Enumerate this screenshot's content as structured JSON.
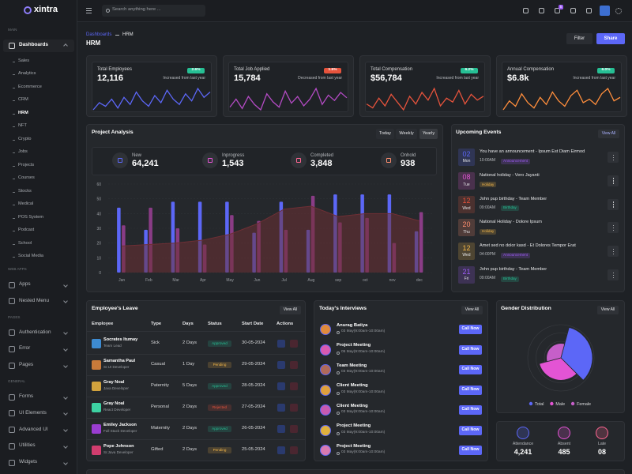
{
  "sidebar": {
    "logo": "xintra",
    "sections": [
      {
        "title": "MAIN",
        "items": [
          {
            "label": "Dashboards",
            "children": [
              "Sales",
              "Analytics",
              "Ecommerce",
              "CRM",
              "HRM",
              "NFT",
              "Crypto",
              "Jobs",
              "Projects",
              "Courses",
              "Stocks",
              "Medical",
              "POS System",
              "Podcast",
              "School",
              "Social Media"
            ]
          }
        ]
      },
      {
        "title": "WEB APPS",
        "items": [
          {
            "label": "Apps"
          },
          {
            "label": "Nested Menu"
          }
        ]
      },
      {
        "title": "PAGES",
        "items": [
          {
            "label": "Authentication"
          },
          {
            "label": "Error"
          },
          {
            "label": "Pages"
          }
        ]
      },
      {
        "title": "GENERAL",
        "items": [
          {
            "label": "Forms"
          },
          {
            "label": "UI Elements"
          },
          {
            "label": "Advanced UI"
          },
          {
            "label": "Utilities"
          },
          {
            "label": "Widgets"
          }
        ]
      }
    ]
  },
  "header": {
    "search_placeholder": "Search anything here ...",
    "notification_count": "5"
  },
  "breadcrumb": [
    "Dashboards",
    "HRM"
  ],
  "page_title": "HRM",
  "buttons": [
    "Filter",
    "Share"
  ],
  "stat_cards": [
    {
      "title": "Total Employees",
      "value": "12,116",
      "change": "2.6%",
      "note": "Increased from last year",
      "badge_color": "#26bf94"
    },
    {
      "title": "Total Job Applied",
      "value": "15,784",
      "change": "1.5%",
      "note": "Decreased from last year",
      "badge_color": "#e6533c"
    },
    {
      "title": "Total Compensation",
      "value": "$56,784",
      "change": "6.2%",
      "note": "Increased from last year",
      "badge_color": "#26bf94"
    },
    {
      "title": "Annual Compensation",
      "value": "$6.8k",
      "change": "6.0%",
      "note": "Increased from last year",
      "badge_color": "#26bf94"
    }
  ],
  "project_analysis": {
    "tabs": [
      "Today",
      "Weekly",
      "Yearly"
    ],
    "stats": [
      {
        "label": "New",
        "value": "64,241",
        "color": "#5c67f7"
      },
      {
        "label": "Inprogress",
        "value": "1,543",
        "color": "#e354d4"
      },
      {
        "label": "Completed",
        "value": "3,848",
        "color": "#ff6692"
      },
      {
        "label": "Onhold",
        "value": "938",
        "color": "#ff8e6f"
      }
    ]
  },
  "events": {
    "title": "Upcoming Events",
    "view_all": "View All",
    "items": [
      {
        "day": "02",
        "weekday": "Mon",
        "title": "You have an announcement - Ipsum Est Diam Eirmod",
        "time": "10:00AM",
        "tag": "Announcement",
        "color": "#5c67f7",
        "tag_color": "#9e5cf7"
      },
      {
        "day": "08",
        "weekday": "Tue",
        "title": "National holiday - Vero Jayanti",
        "tag": "Holiday",
        "color": "#e354d4",
        "tag_color": "#f5b849"
      },
      {
        "day": "12",
        "weekday": "Wed",
        "title": "John pup birthday - Team Member",
        "time": "09:00AM",
        "tag": "Birthday",
        "color": "#e6533c",
        "tag_color": "#26bf94"
      },
      {
        "day": "20",
        "weekday": "Thu",
        "title": "National Holiday - Dolore Ipsum",
        "tag": "Holiday",
        "color": "#ff8e6f",
        "tag_color": "#f5b849"
      },
      {
        "day": "12",
        "weekday": "Wed",
        "title": "Amet sed no dolor kasd - Et Dolores Tempor Erat",
        "time": "04:00PM",
        "tag": "Announcement",
        "color": "#f5b849",
        "tag_color": "#9e5cf7"
      },
      {
        "day": "21",
        "weekday": "Fri",
        "title": "John pup birthday - Team Member",
        "time": "09:00AM",
        "tag": "Birthday",
        "color": "#9e5cf7",
        "tag_color": "#26bf94"
      }
    ]
  },
  "leave": {
    "title": "Employee's Leave",
    "view_all": "View All",
    "columns": [
      "Employee",
      "Type",
      "Days",
      "Status",
      "Start Date",
      "Actions"
    ],
    "rows": [
      {
        "name": "Socrates Itumay",
        "role": "Team Lead",
        "type": "Sick",
        "days": "2 Days",
        "status": "Approved",
        "date": "30-05-2024",
        "status_color": "#26bf94"
      },
      {
        "name": "Samantha Paul",
        "role": "Sr.UI Developer",
        "type": "Casual",
        "days": "1 Day",
        "status": "Pending",
        "date": "29-05-2024",
        "status_color": "#f5b849"
      },
      {
        "name": "Gray Noal",
        "role": "Java Developer",
        "type": "Paternity",
        "days": "5 Days",
        "status": "Approved",
        "date": "28-05-2024",
        "status_color": "#26bf94"
      },
      {
        "name": "Gray Noal",
        "role": "React Developer",
        "type": "Personal",
        "days": "2 Days",
        "status": "Rejected",
        "date": "27-05-2024",
        "status_color": "#e6533c"
      },
      {
        "name": "Emiley Jackson",
        "role": "Full Stack Developer",
        "type": "Maternity",
        "days": "2 Days",
        "status": "Approved",
        "date": "26-05-2024",
        "status_color": "#26bf94"
      },
      {
        "name": "Pope Johnson",
        "role": "Sr.Java Developer",
        "type": "Gifted",
        "days": "2 Days",
        "status": "Pending",
        "date": "25-05-2024",
        "status_color": "#f5b849"
      }
    ]
  },
  "interviews": {
    "title": "Today's Interviews",
    "view_all": "View All",
    "items": [
      {
        "name": "Anurag Batiya",
        "time": "03 May(9:00am-10:00am)",
        "action": "Call Now"
      },
      {
        "name": "Project Meeting",
        "time": "05 May(9:00am-10:00am)",
        "action": "Call Now"
      },
      {
        "name": "Team Meeting",
        "time": "03 May(9:00am-10:00am)",
        "action": "Call Now"
      },
      {
        "name": "Client Meeting",
        "time": "03 May(9:00am-10:00am)",
        "action": "Call Now"
      },
      {
        "name": "Client Meeting",
        "time": "03 May(9:00am-10:00am)",
        "action": "Call Now"
      },
      {
        "name": "Project Meeting",
        "time": "03 May(9:00am-10:00am)",
        "action": "Call Now"
      },
      {
        "name": "Project Meeting",
        "time": "03 May(9:00am-10:00am)",
        "action": "Call Now"
      }
    ]
  },
  "gender_view_all": "View All",
  "attendance": [
    {
      "label": "Attendance",
      "value": "4,241",
      "color": "#5c67f7"
    },
    {
      "label": "Absent",
      "value": "485",
      "color": "#e354d4"
    },
    {
      "label": "Late",
      "value": "08",
      "color": "#ff6692"
    }
  ],
  "chart_data": [
    {
      "type": "bar",
      "title": "Project Analysis",
      "categories": [
        "Jan",
        "Feb",
        "Mar",
        "Apr",
        "May",
        "Jun",
        "Jul",
        "Aug",
        "sep",
        "oct",
        "nov",
        "dec"
      ],
      "series": [
        {
          "color": "#5c67f7",
          "values": [
            44,
            29,
            48,
            48,
            48,
            27,
            48,
            29,
            53,
            53,
            53,
            28
          ]
        },
        {
          "color": "#8a3c86",
          "values": [
            32,
            44,
            30,
            19,
            39,
            35,
            29,
            52,
            34,
            37,
            20,
            41
          ]
        },
        {
          "type": "area",
          "color": "#6e2f35",
          "values": [
            18,
            19,
            20,
            22,
            26,
            33,
            43,
            45,
            38,
            40,
            40,
            35
          ]
        }
      ],
      "ylim": [
        0,
        60
      ],
      "yticks": [
        0,
        10,
        20,
        30,
        40,
        50,
        60
      ],
      "grid": true
    },
    {
      "type": "polar",
      "title": "Gender Distribution",
      "categories": [
        "Total",
        "Male",
        "Female"
      ],
      "values": [
        48,
        34,
        22
      ],
      "colors": [
        "#5c67f7",
        "#e354d4",
        "#c65fc9"
      ]
    },
    {
      "type": "line",
      "color": "#5c67f7",
      "values": [
        8,
        12,
        10,
        14,
        9,
        15,
        11,
        18,
        13,
        10,
        16,
        12,
        19,
        14,
        11,
        17,
        13,
        20,
        15,
        18
      ]
    },
    {
      "type": "line",
      "color": "#b44bc4",
      "values": [
        10,
        16,
        9,
        18,
        12,
        8,
        20,
        14,
        10,
        22,
        13,
        18,
        11,
        16,
        24,
        12,
        19,
        15,
        21,
        17
      ]
    },
    {
      "type": "line",
      "color": "#e6533c",
      "values": [
        12,
        10,
        15,
        11,
        17,
        13,
        9,
        16,
        12,
        18,
        14,
        20,
        11,
        15,
        13,
        19,
        12,
        17,
        14,
        16
      ]
    },
    {
      "type": "line",
      "color": "#ff8e3c",
      "values": [
        9,
        14,
        11,
        18,
        13,
        10,
        16,
        12,
        19,
        14,
        11,
        17,
        20,
        13,
        15,
        12,
        18,
        21,
        14,
        16
      ]
    }
  ]
}
